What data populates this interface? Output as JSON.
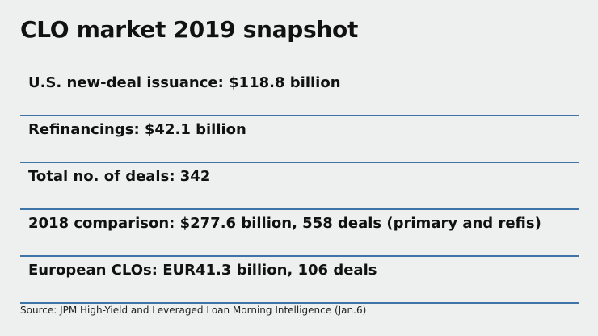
{
  "header": {
    "title": "CLO market 2019 snapshot"
  },
  "items": [
    "U.S. new-deal issuance: $118.8 billion",
    "Refinancings: $42.1 billion",
    "Total no. of deals: 342",
    "2018 comparison: $277.6 billion, 558 deals (primary and refis)",
    "European CLOs: EUR41.3 billion, 106 deals"
  ],
  "footer": {
    "source": "Source: JPM High-Yield and Leveraged Loan Morning Intelligence (Jan.6)"
  }
}
